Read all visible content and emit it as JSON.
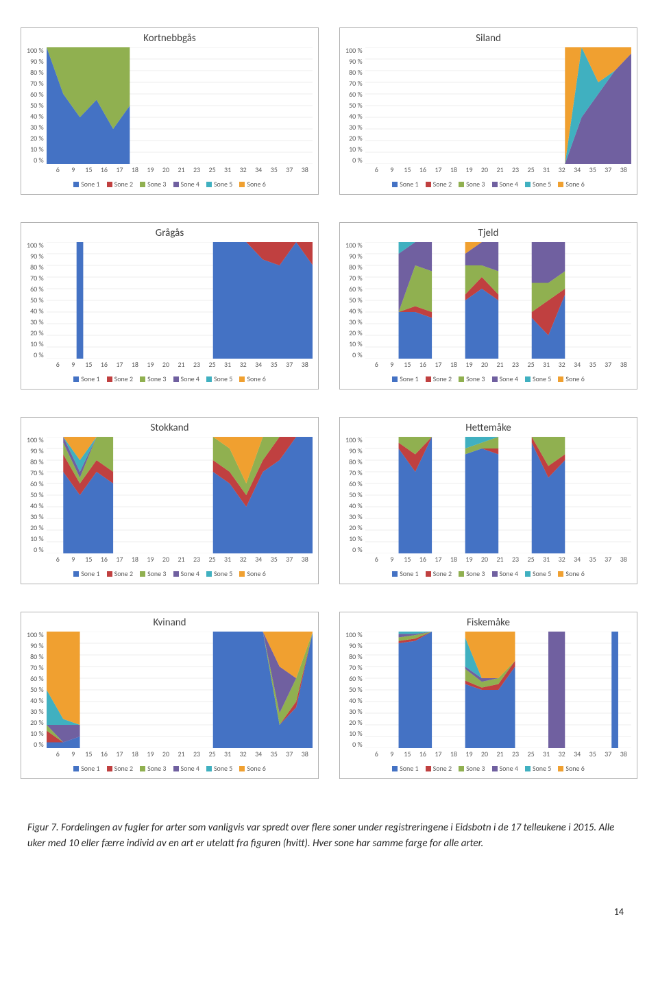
{
  "page_number": "14",
  "caption": "Figur 7. Fordelingen av fugler for arter som vanligvis var spredt over flere soner under registreringene i Eidsbotn i de 17 telleukene i 2015. Alle uker med 10 eller færre individ av en art er utelatt fra figuren (hvitt). Hver sone har samme farge for alle arter.",
  "x_categories": [
    "6",
    "9",
    "15",
    "16",
    "17",
    "18",
    "19",
    "20",
    "21",
    "23",
    "25",
    "31",
    "32",
    "34",
    "35",
    "37",
    "38"
  ],
  "y_ticks": [
    "100 %",
    "90 %",
    "80 %",
    "70 %",
    "60 %",
    "50 %",
    "40 %",
    "30 %",
    "20 %",
    "10 %",
    "0 %"
  ],
  "series_colors": {
    "Sone 1": "#4472c4",
    "Sone 2": "#c04040",
    "Sone 3": "#90b050",
    "Sone 4": "#7060a0",
    "Sone 5": "#40b0c0",
    "Sone 6": "#f0a030"
  },
  "legend_labels": [
    "Sone 1",
    "Sone 2",
    "Sone 3",
    "Sone 4",
    "Sone 5",
    "Sone 6"
  ],
  "plot_border_color": "#b0b0b0",
  "axis_font_size": 10,
  "title_font_size": 15,
  "chart_bg": "#ffffff",
  "gridline_color": "#d9d9d9",
  "ylim": [
    0,
    100
  ],
  "charts": [
    {
      "title": "Kortnebbgås",
      "data": [
        {
          "s1": 100,
          "s2": 0,
          "s3": 0,
          "s4": 0,
          "s5": 0,
          "s6": 0
        },
        {
          "s1": 60,
          "s2": 0,
          "s3": 40,
          "s4": 0,
          "s5": 0,
          "s6": 0
        },
        {
          "s1": 40,
          "s2": 0,
          "s3": 60,
          "s4": 0,
          "s5": 0,
          "s6": 0
        },
        {
          "s1": 55,
          "s2": 0,
          "s3": 45,
          "s4": 0,
          "s5": 0,
          "s6": 0
        },
        {
          "s1": 30,
          "s2": 0,
          "s3": 70,
          "s4": 0,
          "s5": 0,
          "s6": 0
        },
        {
          "s1": 50,
          "s2": 0,
          "s3": 50,
          "s4": 0,
          "s5": 0,
          "s6": 0
        },
        null,
        null,
        null,
        null,
        null,
        null,
        null,
        null,
        null,
        null,
        null
      ]
    },
    {
      "title": "Siland",
      "data": [
        null,
        null,
        null,
        null,
        null,
        null,
        null,
        null,
        null,
        null,
        null,
        null,
        {
          "s1": 0,
          "s2": 0,
          "s3": 0,
          "s4": 0,
          "s5": 0,
          "s6": 100
        },
        {
          "s1": 0,
          "s2": 0,
          "s3": 0,
          "s4": 40,
          "s5": 60,
          "s6": 0
        },
        {
          "s1": 0,
          "s2": 0,
          "s3": 0,
          "s4": 60,
          "s5": 10,
          "s6": 30
        },
        {
          "s1": 0,
          "s2": 0,
          "s3": 0,
          "s4": 80,
          "s5": 0,
          "s6": 20
        },
        {
          "s1": 0,
          "s2": 0,
          "s3": 0,
          "s4": 95,
          "s5": 0,
          "s6": 5
        }
      ]
    },
    {
      "title": "Grågås",
      "data": [
        null,
        null,
        {
          "s1": 100,
          "s2": 0,
          "s3": 0,
          "s4": 0,
          "s5": 0,
          "s6": 0
        },
        null,
        null,
        null,
        null,
        null,
        null,
        null,
        {
          "s1": 100,
          "s2": 0,
          "s3": 0,
          "s4": 0,
          "s5": 0,
          "s6": 0
        },
        {
          "s1": 100,
          "s2": 0,
          "s3": 0,
          "s4": 0,
          "s5": 0,
          "s6": 0
        },
        {
          "s1": 100,
          "s2": 0,
          "s3": 0,
          "s4": 0,
          "s5": 0,
          "s6": 0
        },
        {
          "s1": 85,
          "s2": 15,
          "s3": 0,
          "s4": 0,
          "s5": 0,
          "s6": 0
        },
        {
          "s1": 80,
          "s2": 20,
          "s3": 0,
          "s4": 0,
          "s5": 0,
          "s6": 0
        },
        {
          "s1": 100,
          "s2": 0,
          "s3": 0,
          "s4": 0,
          "s5": 0,
          "s6": 0
        },
        {
          "s1": 80,
          "s2": 20,
          "s3": 0,
          "s4": 0,
          "s5": 0,
          "s6": 0
        }
      ]
    },
    {
      "title": "Tjeld",
      "data": [
        null,
        null,
        {
          "s1": 40,
          "s2": 0,
          "s3": 0,
          "s4": 50,
          "s5": 10,
          "s6": 0
        },
        {
          "s1": 40,
          "s2": 5,
          "s3": 35,
          "s4": 20,
          "s5": 0,
          "s6": 0
        },
        {
          "s1": 35,
          "s2": 5,
          "s3": 35,
          "s4": 25,
          "s5": 0,
          "s6": 0
        },
        null,
        {
          "s1": 50,
          "s2": 5,
          "s3": 25,
          "s4": 10,
          "s5": 0,
          "s6": 10
        },
        {
          "s1": 60,
          "s2": 10,
          "s3": 10,
          "s4": 20,
          "s5": 0,
          "s6": 0
        },
        {
          "s1": 50,
          "s2": 5,
          "s3": 20,
          "s4": 25,
          "s5": 0,
          "s6": 0
        },
        null,
        {
          "s1": 35,
          "s2": 5,
          "s3": 25,
          "s4": 35,
          "s5": 0,
          "s6": 0
        },
        {
          "s1": 20,
          "s2": 30,
          "s3": 15,
          "s4": 35,
          "s5": 0,
          "s6": 0
        },
        {
          "s1": 55,
          "s2": 5,
          "s3": 15,
          "s4": 25,
          "s5": 0,
          "s6": 0
        },
        null,
        null,
        null,
        null
      ]
    },
    {
      "title": "Stokkand",
      "data": [
        null,
        {
          "s1": 70,
          "s2": 15,
          "s3": 10,
          "s4": 5,
          "s5": 0,
          "s6": 0
        },
        {
          "s1": 50,
          "s2": 10,
          "s3": 5,
          "s4": 5,
          "s5": 10,
          "s6": 20
        },
        {
          "s1": 70,
          "s2": 10,
          "s3": 20,
          "s4": 0,
          "s5": 0,
          "s6": 0
        },
        {
          "s1": 60,
          "s2": 10,
          "s3": 30,
          "s4": 0,
          "s5": 0,
          "s6": 0
        },
        null,
        null,
        null,
        null,
        null,
        {
          "s1": 70,
          "s2": 10,
          "s3": 20,
          "s4": 0,
          "s5": 0,
          "s6": 0
        },
        {
          "s1": 60,
          "s2": 10,
          "s3": 20,
          "s4": 0,
          "s5": 0,
          "s6": 10
        },
        {
          "s1": 40,
          "s2": 10,
          "s3": 10,
          "s4": 0,
          "s5": 0,
          "s6": 40
        },
        {
          "s1": 70,
          "s2": 10,
          "s3": 20,
          "s4": 0,
          "s5": 0,
          "s6": 0
        },
        {
          "s1": 80,
          "s2": 20,
          "s3": 0,
          "s4": 0,
          "s5": 0,
          "s6": 0
        },
        {
          "s1": 100,
          "s2": 0,
          "s3": 0,
          "s4": 0,
          "s5": 0,
          "s6": 0
        },
        {
          "s1": 100,
          "s2": 0,
          "s3": 0,
          "s4": 0,
          "s5": 0,
          "s6": 0
        }
      ]
    },
    {
      "title": "Hettemåke",
      "data": [
        null,
        null,
        {
          "s1": 90,
          "s2": 5,
          "s3": 5,
          "s4": 0,
          "s5": 0,
          "s6": 0
        },
        {
          "s1": 70,
          "s2": 15,
          "s3": 15,
          "s4": 0,
          "s5": 0,
          "s6": 0
        },
        {
          "s1": 100,
          "s2": 0,
          "s3": 0,
          "s4": 0,
          "s5": 0,
          "s6": 0
        },
        null,
        {
          "s1": 85,
          "s2": 0,
          "s3": 5,
          "s4": 0,
          "s5": 10,
          "s6": 0
        },
        {
          "s1": 90,
          "s2": 0,
          "s3": 5,
          "s4": 0,
          "s5": 5,
          "s6": 0
        },
        {
          "s1": 85,
          "s2": 5,
          "s3": 10,
          "s4": 0,
          "s5": 0,
          "s6": 0
        },
        null,
        {
          "s1": 95,
          "s2": 5,
          "s3": 0,
          "s4": 0,
          "s5": 0,
          "s6": 0
        },
        {
          "s1": 65,
          "s2": 10,
          "s3": 25,
          "s4": 0,
          "s5": 0,
          "s6": 0
        },
        {
          "s1": 80,
          "s2": 5,
          "s3": 15,
          "s4": 0,
          "s5": 0,
          "s6": 0
        },
        null,
        null,
        null,
        null
      ]
    },
    {
      "title": "Kvinand",
      "data": [
        {
          "s1": 5,
          "s2": 10,
          "s3": 5,
          "s4": 0,
          "s5": 30,
          "s6": 50
        },
        {
          "s1": 5,
          "s2": 0,
          "s3": 0,
          "s4": 15,
          "s5": 5,
          "s6": 75
        },
        {
          "s1": 10,
          "s2": 0,
          "s3": 0,
          "s4": 10,
          "s5": 0,
          "s6": 80
        },
        null,
        null,
        null,
        null,
        null,
        null,
        null,
        {
          "s1": 100,
          "s2": 0,
          "s3": 0,
          "s4": 0,
          "s5": 0,
          "s6": 0
        },
        {
          "s1": 100,
          "s2": 0,
          "s3": 0,
          "s4": 0,
          "s5": 0,
          "s6": 0
        },
        {
          "s1": 100,
          "s2": 0,
          "s3": 0,
          "s4": 0,
          "s5": 0,
          "s6": 0
        },
        {
          "s1": 100,
          "s2": 0,
          "s3": 0,
          "s4": 0,
          "s5": 0,
          "s6": 0
        },
        {
          "s1": 20,
          "s2": 0,
          "s3": 10,
          "s4": 40,
          "s5": 0,
          "s6": 30
        },
        {
          "s1": 35,
          "s2": 5,
          "s3": 20,
          "s4": 0,
          "s5": 0,
          "s6": 40
        },
        {
          "s1": 100,
          "s2": 0,
          "s3": 0,
          "s4": 0,
          "s5": 0,
          "s6": 0
        }
      ]
    },
    {
      "title": "Fiskemåke",
      "data": [
        null,
        null,
        {
          "s1": 90,
          "s2": 2,
          "s3": 3,
          "s4": 3,
          "s5": 2,
          "s6": 0
        },
        {
          "s1": 92,
          "s2": 2,
          "s3": 3,
          "s4": 1,
          "s5": 2,
          "s6": 0
        },
        {
          "s1": 100,
          "s2": 0,
          "s3": 0,
          "s4": 0,
          "s5": 0,
          "s6": 0
        },
        null,
        {
          "s1": 55,
          "s2": 3,
          "s3": 10,
          "s4": 2,
          "s5": 25,
          "s6": 5
        },
        {
          "s1": 50,
          "s2": 2,
          "s3": 5,
          "s4": 3,
          "s5": 0,
          "s6": 40
        },
        {
          "s1": 50,
          "s2": 5,
          "s3": 5,
          "s4": 0,
          "s5": 0,
          "s6": 40
        },
        {
          "s1": 70,
          "s2": 5,
          "s3": 0,
          "s4": 0,
          "s5": 0,
          "s6": 25
        },
        null,
        {
          "s1": 0,
          "s2": 0,
          "s3": 0,
          "s4": 100,
          "s5": 0,
          "s6": 0
        },
        {
          "s1": 0,
          "s2": 0,
          "s3": 0,
          "s4": 100,
          "s5": 0,
          "s6": 0
        },
        null,
        null,
        {
          "s1": 100,
          "s2": 0,
          "s3": 0,
          "s4": 0,
          "s5": 0,
          "s6": 0
        },
        null
      ]
    }
  ]
}
